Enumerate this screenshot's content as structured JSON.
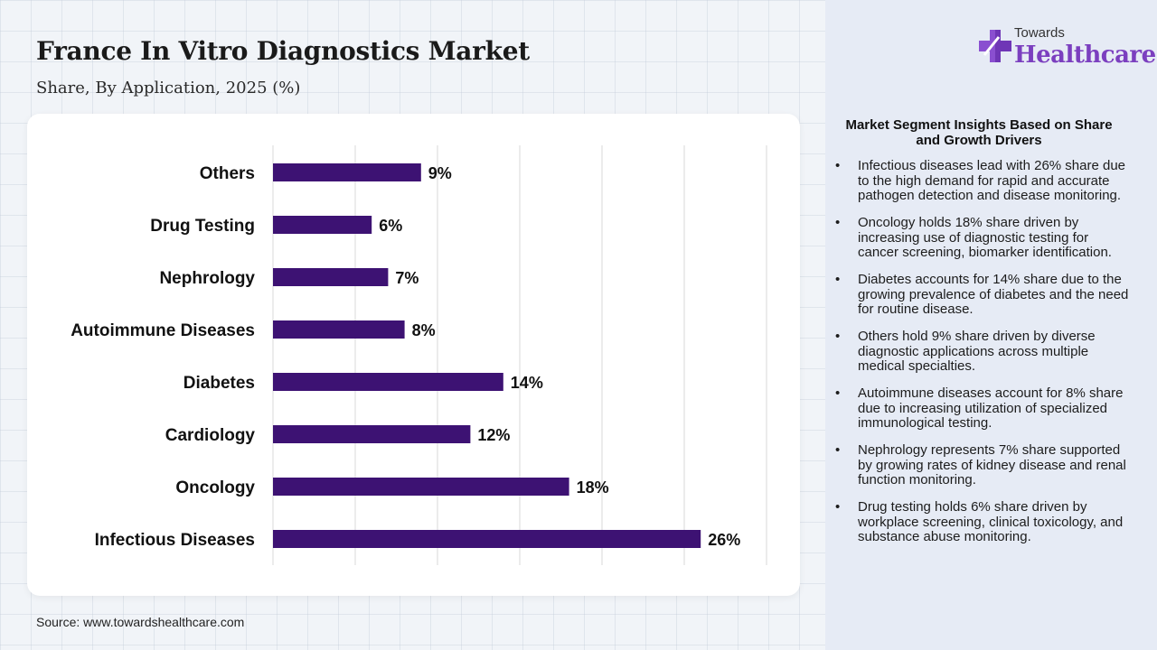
{
  "header": {
    "title": "France In Vitro Diagnostics Market",
    "subtitle": "Share, By Application, 2025 (%)"
  },
  "source": "Source: www.towardshealthcare.com",
  "brand": {
    "top": "Towards",
    "bottom": "Healthcare",
    "icon": "medical-cross-logo-icon",
    "color": "#7b3fbf"
  },
  "insights": {
    "title": "Market Segment Insights Based on Share and Growth Drivers",
    "items": [
      "Infectious diseases lead with 26% share due to the high demand for rapid and accurate pathogen detection and disease monitoring.",
      "Oncology holds 18% share driven by increasing use of diagnostic testing for cancer screening, biomarker identification.",
      "Diabetes accounts for 14% share due to the growing prevalence of diabetes and the need for routine disease.",
      "Others hold 9% share driven by diverse diagnostic applications across multiple medical specialties.",
      "Autoimmune diseases account for 8% share due to increasing utilization of specialized immunological testing.",
      "Nephrology represents 7% share supported by growing rates of kidney disease and renal function monitoring.",
      "Drug testing holds 6% share driven by workplace screening, clinical toxicology, and substance abuse monitoring."
    ]
  },
  "chart_data": {
    "type": "bar",
    "orientation": "horizontal",
    "categories": [
      "Others",
      "Drug Testing",
      "Nephrology",
      "Autoimmune Diseases",
      "Diabetes",
      "Cardiology",
      "Oncology",
      "Infectious Diseases"
    ],
    "values": [
      9,
      6,
      7,
      8,
      14,
      12,
      18,
      26
    ],
    "value_labels": [
      "9%",
      "6%",
      "7%",
      "8%",
      "14%",
      "12%",
      "18%",
      "26%"
    ],
    "xlim": [
      0,
      30
    ],
    "grid": true,
    "bar_color": "#3d1273",
    "xlabel": "",
    "ylabel": ""
  }
}
